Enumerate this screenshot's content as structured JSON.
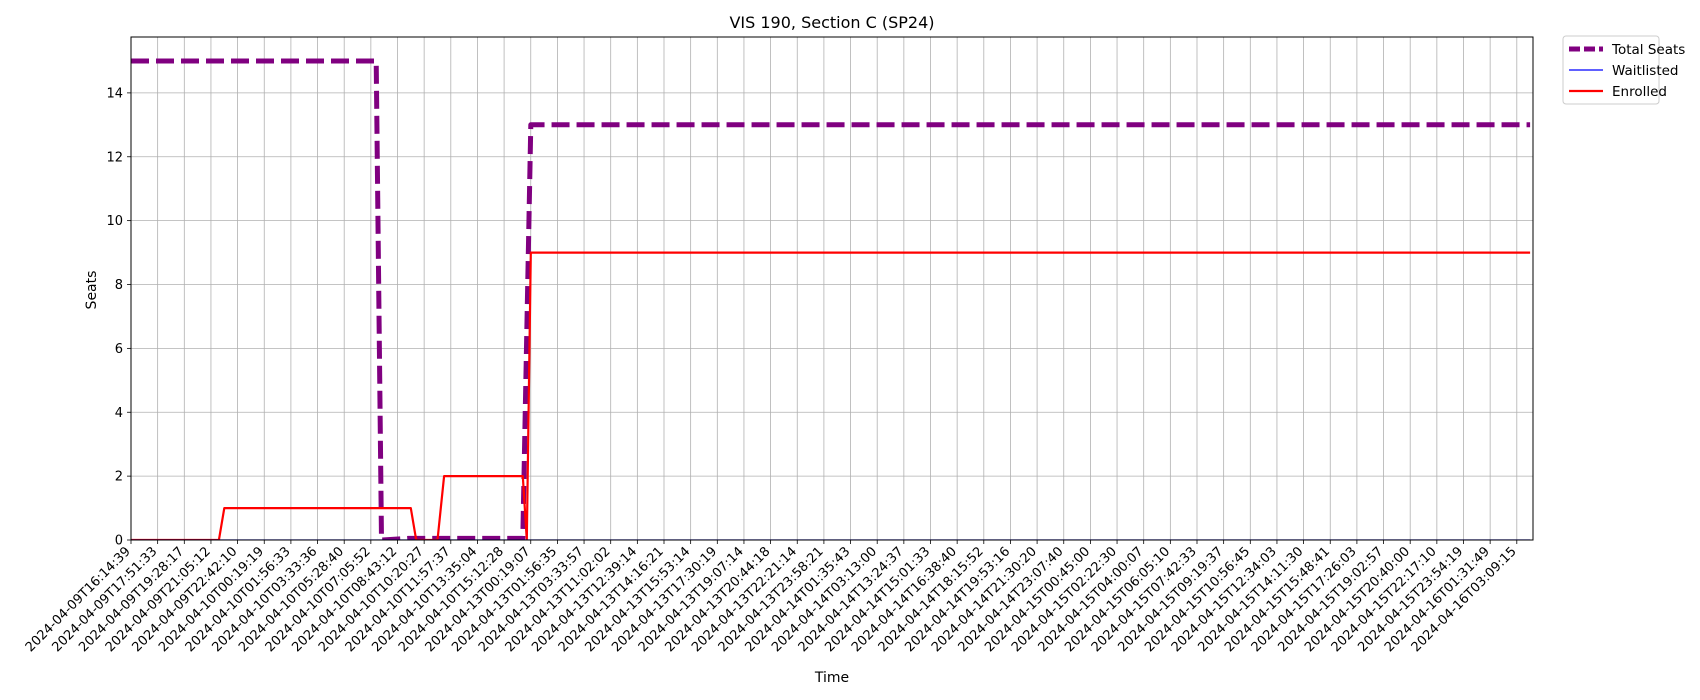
{
  "chart_data": {
    "type": "line",
    "title": "VIS 190, Section C (SP24)",
    "xlabel": "Time",
    "ylabel": "Seats",
    "ylim": [
      0,
      15.75
    ],
    "yticks": [
      0,
      2,
      4,
      6,
      8,
      10,
      12,
      14
    ],
    "grid": true,
    "legend_position": "outside-top-right",
    "categories": [
      "2024-04-09T16:14:39",
      "2024-04-09T17:51:33",
      "2024-04-09T19:28:17",
      "2024-04-09T21:05:12",
      "2024-04-09T22:42:10",
      "2024-04-10T00:19:19",
      "2024-04-10T01:56:33",
      "2024-04-10T03:33:36",
      "2024-04-10T05:28:40",
      "2024-04-10T07:05:52",
      "2024-04-10T08:43:12",
      "2024-04-10T10:20:27",
      "2024-04-10T11:57:37",
      "2024-04-10T13:35:04",
      "2024-04-10T15:12:28",
      "2024-04-13T00:19:07",
      "2024-04-13T01:56:35",
      "2024-04-13T03:33:57",
      "2024-04-13T11:02:02",
      "2024-04-13T12:39:14",
      "2024-04-13T14:16:21",
      "2024-04-13T15:53:14",
      "2024-04-13T17:30:19",
      "2024-04-13T19:07:14",
      "2024-04-13T20:44:18",
      "2024-04-13T22:21:14",
      "2024-04-13T23:58:21",
      "2024-04-14T01:35:43",
      "2024-04-14T03:13:00",
      "2024-04-14T13:24:37",
      "2024-04-14T15:01:33",
      "2024-04-14T16:38:40",
      "2024-04-14T18:15:52",
      "2024-04-14T19:53:16",
      "2024-04-14T21:30:20",
      "2024-04-14T23:07:40",
      "2024-04-15T00:45:00",
      "2024-04-15T02:22:30",
      "2024-04-15T04:00:07",
      "2024-04-15T06:05:10",
      "2024-04-15T07:42:33",
      "2024-04-15T09:19:37",
      "2024-04-15T10:56:45",
      "2024-04-15T12:34:03",
      "2024-04-15T14:11:30",
      "2024-04-15T15:48:41",
      "2024-04-15T17:26:03",
      "2024-04-15T19:02:57",
      "2024-04-15T20:40:00",
      "2024-04-15T22:17:10",
      "2024-04-15T23:54:19",
      "2024-04-16T01:31:49",
      "2024-04-16T03:09:15"
    ],
    "series": [
      {
        "name": "Total Seats",
        "color": "#800080",
        "style": "dashed",
        "x": [
          0,
          9.2,
          9.4,
          10.4,
          11.5,
          12.5,
          14.7,
          15.0,
          52.5
        ],
        "y": [
          15,
          15,
          0,
          0.05,
          0.05,
          0.05,
          0.05,
          13,
          13
        ]
      },
      {
        "name": "Waitlisted",
        "color": "#0000ff",
        "style": "solid",
        "x": [
          0,
          52.5
        ],
        "y": [
          0,
          0
        ]
      },
      {
        "name": "Enrolled",
        "color": "#ff0000",
        "style": "solid",
        "x": [
          0,
          3.3,
          3.5,
          10.5,
          10.7,
          11.5,
          11.75,
          14.7,
          14.85,
          15.0,
          52.5
        ],
        "y": [
          0,
          0,
          1,
          1,
          0,
          0,
          2,
          2,
          0,
          9,
          9
        ]
      }
    ]
  }
}
